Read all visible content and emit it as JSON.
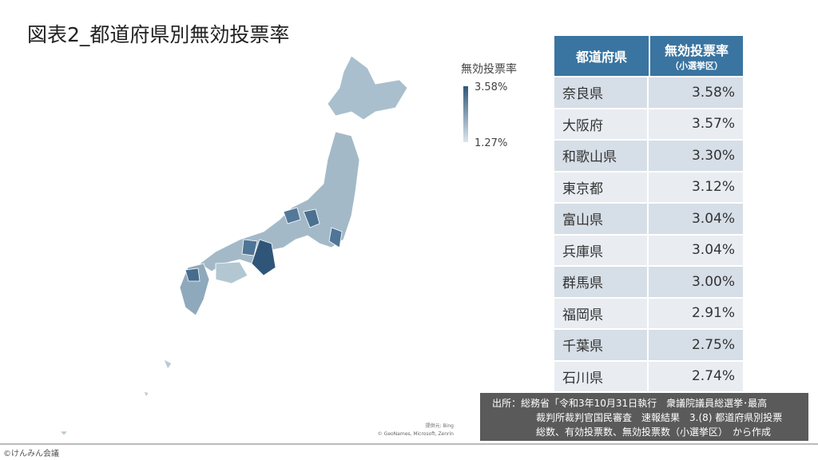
{
  "title": "図表2_都道府県別無効投票率",
  "legend": {
    "title": "無効投票率",
    "max": "3.58%",
    "min": "1.27%"
  },
  "table": {
    "header": [
      "都道府県",
      "無効投票率",
      "（小選挙区）"
    ],
    "rows": [
      [
        "奈良県",
        "3.58%"
      ],
      [
        "大阪府",
        "3.57%"
      ],
      [
        "和歌山県",
        "3.30%"
      ],
      [
        "東京都",
        "3.12%"
      ],
      [
        "富山県",
        "3.04%"
      ],
      [
        "兵庫県",
        "3.04%"
      ],
      [
        "群馬県",
        "3.00%"
      ],
      [
        "福岡県",
        "2.91%"
      ],
      [
        "千葉県",
        "2.75%"
      ],
      [
        "石川県",
        "2.74%"
      ]
    ]
  },
  "source": [
    "出所：総務省「令和3年10月31日執行　衆議院議員総選挙･最高",
    "裁判所裁判官国民審査　速報結果　3.(8) 都道府県別投票",
    "総数、有効投票数、無効投票数（小選挙区）　から作成"
  ],
  "map_credit": [
    "提供元: Bing",
    "© GeoNames, Microsoft, Zenrin"
  ],
  "footer": "©けんみん会議"
}
